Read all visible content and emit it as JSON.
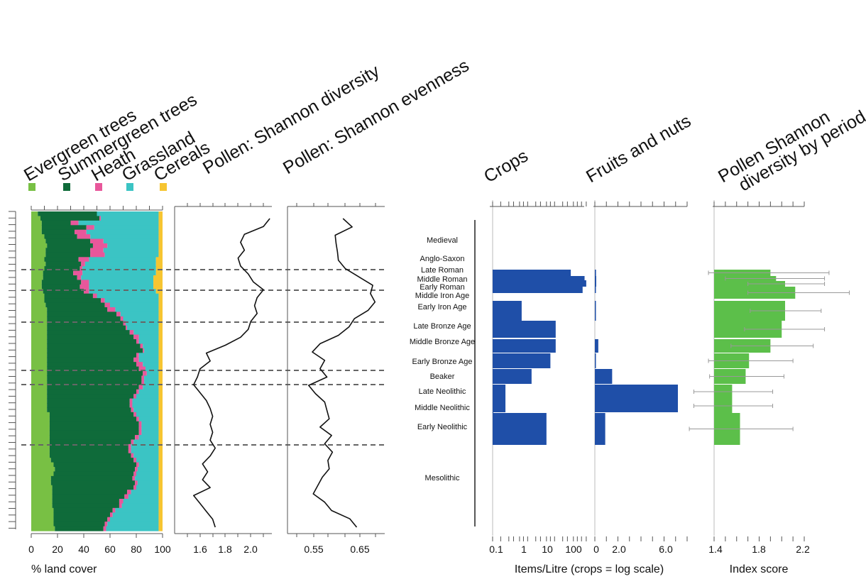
{
  "chart_data": [
    {
      "type": "area",
      "subtype": "stacked-horizontal-percent",
      "xlabel": "% land cover",
      "xlim": [
        0,
        100
      ],
      "xticks": [
        "0",
        "20",
        "40",
        "60",
        "80",
        "100"
      ],
      "legend": [
        {
          "name": "Evergreen trees",
          "color": "#78c044"
        },
        {
          "name": "Summergreen trees",
          "color": "#0f6b3a"
        },
        {
          "name": "Heath",
          "color": "#e8579b"
        },
        {
          "name": "Grassland",
          "color": "#3bc4c4"
        },
        {
          "name": "Cereals",
          "color": "#f6c531"
        }
      ],
      "note": "Samples ordered top (youngest) to bottom (oldest); values are cumulative boundaries per sample (Evergreen, +Summergreen, +Heath, +Grassland).",
      "cumulative": [
        [
          5,
          50,
          50,
          97
        ],
        [
          7,
          52,
          53,
          97
        ],
        [
          8,
          30,
          36,
          97
        ],
        [
          8,
          42,
          48,
          97
        ],
        [
          8,
          33,
          42,
          97
        ],
        [
          10,
          35,
          45,
          97
        ],
        [
          11,
          45,
          55,
          97
        ],
        [
          12,
          47,
          58,
          97
        ],
        [
          11,
          45,
          55,
          97
        ],
        [
          11,
          45,
          56,
          97
        ],
        [
          10,
          36,
          44,
          95
        ],
        [
          11,
          38,
          41,
          95
        ],
        [
          10,
          37,
          39,
          95
        ],
        [
          9,
          32,
          39,
          95
        ],
        [
          9,
          35,
          38,
          93
        ],
        [
          8,
          38,
          44,
          93
        ],
        [
          8,
          37,
          44,
          93
        ],
        [
          9,
          40,
          44,
          95
        ],
        [
          10,
          47,
          50,
          97
        ],
        [
          10,
          53,
          56,
          97
        ],
        [
          11,
          56,
          60,
          97
        ],
        [
          12,
          58,
          64,
          97
        ],
        [
          12,
          65,
          68,
          97
        ],
        [
          12,
          68,
          70,
          97
        ],
        [
          12,
          70,
          72,
          97
        ],
        [
          12,
          72,
          73,
          97
        ],
        [
          12,
          75,
          78,
          97
        ],
        [
          12,
          78,
          82,
          97
        ],
        [
          12,
          80,
          82,
          97
        ],
        [
          12,
          83,
          85,
          97
        ],
        [
          12,
          85,
          86,
          97
        ],
        [
          12,
          80,
          82,
          97
        ],
        [
          12,
          78,
          82,
          97
        ],
        [
          12,
          80,
          85,
          97
        ],
        [
          12,
          82,
          87,
          97
        ],
        [
          12,
          85,
          88,
          97
        ],
        [
          12,
          84,
          86,
          97
        ],
        [
          12,
          84,
          86,
          97
        ],
        [
          12,
          82,
          85,
          97
        ],
        [
          12,
          80,
          82,
          97
        ],
        [
          12,
          78,
          80,
          97
        ],
        [
          12,
          75,
          77,
          97
        ],
        [
          12,
          75,
          77,
          97
        ],
        [
          12,
          76,
          78,
          97
        ],
        [
          14,
          78,
          80,
          97
        ],
        [
          14,
          80,
          82,
          97
        ],
        [
          14,
          82,
          84,
          97
        ],
        [
          14,
          82,
          84,
          97
        ],
        [
          14,
          82,
          84,
          97
        ],
        [
          14,
          79,
          82,
          97
        ],
        [
          14,
          76,
          78,
          97
        ],
        [
          14,
          74,
          76,
          97
        ],
        [
          14,
          74,
          76,
          97
        ],
        [
          14,
          76,
          78,
          97
        ],
        [
          15,
          78,
          80,
          97
        ],
        [
          17,
          80,
          82,
          97
        ],
        [
          18,
          79,
          81,
          97
        ],
        [
          17,
          78,
          80,
          97
        ],
        [
          15,
          77,
          79,
          97
        ],
        [
          15,
          79,
          81,
          97
        ],
        [
          16,
          78,
          80,
          97
        ],
        [
          16,
          73,
          76,
          97
        ],
        [
          16,
          71,
          74,
          97
        ],
        [
          16,
          67,
          70,
          97
        ],
        [
          16,
          67,
          69,
          97
        ],
        [
          17,
          62,
          64,
          97
        ],
        [
          17,
          60,
          62,
          97
        ],
        [
          17,
          58,
          60,
          97
        ],
        [
          17,
          56,
          58,
          97
        ],
        [
          18,
          55,
          57,
          97
        ]
      ]
    },
    {
      "type": "line",
      "title": "Pollen: Shannon diversity",
      "xlim": [
        1.4,
        2.2
      ],
      "xticks": [
        "1.6",
        "1.8",
        "2.0"
      ],
      "values": [
        2.15,
        2.1,
        1.95,
        1.92,
        1.95,
        1.9,
        1.92,
        1.98,
        2.02,
        2.1,
        2.05,
        2.03,
        2.05,
        2.0,
        1.98,
        1.92,
        1.8,
        1.65,
        1.68,
        1.6,
        1.58,
        1.55,
        1.6,
        1.65,
        1.68,
        1.7,
        1.68,
        1.7,
        1.68,
        1.72,
        1.68,
        1.62,
        1.66,
        1.62,
        1.68,
        1.55,
        1.6,
        1.65,
        1.7,
        1.72
      ]
    },
    {
      "type": "line",
      "title": "Pollen: Shannon evenness",
      "xlim": [
        0.5,
        0.7
      ],
      "xticks": [
        "0.55",
        "0.65"
      ],
      "values": [
        0.615,
        0.635,
        0.598,
        0.6,
        0.603,
        0.605,
        0.62,
        0.65,
        0.68,
        0.675,
        0.685,
        0.67,
        0.64,
        0.628,
        0.605,
        0.565,
        0.548,
        0.575,
        0.565,
        0.58,
        0.54,
        0.555,
        0.575,
        0.58,
        0.585,
        0.565,
        0.59,
        0.575,
        0.592,
        0.582,
        0.585,
        0.57,
        0.56,
        0.55,
        0.575,
        0.59,
        0.63,
        0.645
      ]
    },
    {
      "type": "bar",
      "orientation": "horizontal",
      "title": "Crops",
      "scale": "log",
      "xticks": [
        "0.1",
        "1",
        "10",
        "100"
      ],
      "categories": [
        "Medieval",
        "Anglo-Saxon",
        "Late Roman",
        "Middle Roman",
        "Early Roman",
        "Middle Iron Age",
        "Early Iron Age",
        "Late Bronze Age",
        "Middle Bronze Age",
        "Early Bronze Age",
        "Beaker",
        "Late Neolithic",
        "Middle Neolithic",
        "Early Neolithic",
        "Mesolithic"
      ],
      "values": [
        null,
        null,
        40,
        130,
        150,
        110,
        0.6,
        11,
        11,
        7,
        1.4,
        0.15,
        0.05,
        5,
        null
      ]
    },
    {
      "type": "bar",
      "orientation": "horizontal",
      "title": "Fruits and nuts",
      "xlim": [
        0,
        8
      ],
      "xticks": [
        "0",
        "2.0",
        "6.0"
      ],
      "categories": [
        "Medieval",
        "Anglo-Saxon",
        "Late Roman",
        "Middle Roman",
        "Early Roman",
        "Middle Iron Age",
        "Early Iron Age",
        "Late Bronze Age",
        "Middle Bronze Age",
        "Early Bronze Age",
        "Beaker",
        "Late Neolithic",
        "Middle Neolithic",
        "Early Neolithic",
        "Mesolithic"
      ],
      "values": [
        null,
        null,
        0.1,
        0.12,
        0.12,
        0.06,
        0.08,
        0,
        0.3,
        0.05,
        1.5,
        7.2,
        null,
        0.9,
        null
      ]
    },
    {
      "type": "bar",
      "orientation": "horizontal",
      "title": "Pollen Shannon diversity by period",
      "xlabel": "Index score",
      "xlim": [
        1.4,
        2.2
      ],
      "xticks": [
        "1.4",
        "1.8",
        "2.2"
      ],
      "categories": [
        "Late Roman",
        "Middle Roman",
        "Early Roman",
        "Middle Iron Age",
        "Early Iron Age",
        "Late Bronze Age",
        "Middle Bronze Age",
        "Early Bronze Age",
        "Beaker",
        "Late Neolithic",
        "Middle Neolithic",
        "Early Neolithic"
      ],
      "values": [
        1.9,
        1.95,
        2.03,
        2.12,
        2.03,
        2.0,
        1.9,
        1.71,
        1.68,
        1.56,
        1.56,
        1.63
      ],
      "error_low": [
        1.35,
        1.5,
        1.7,
        1.7,
        1.72,
        1.67,
        1.55,
        1.35,
        1.36,
        1.22,
        1.22,
        1.18
      ],
      "error_high": [
        2.42,
        2.38,
        2.38,
        2.6,
        2.35,
        2.38,
        2.28,
        2.1,
        2.02,
        1.92,
        1.92,
        2.1
      ]
    }
  ],
  "labels": {
    "legend": [
      "Evergreen trees",
      "Summergreen trees",
      "Heath",
      "Grassland",
      "Cereals"
    ],
    "panel_diversity": "Pollen: Shannon diversity",
    "panel_evenness": "Pollen: Shannon evenness",
    "panel_crops": "Crops",
    "panel_fruits": "Fruits and nuts",
    "panel_index_1": "Pollen Shannon",
    "panel_index_2": "diversity by period",
    "xlabel_landcover": "% land cover",
    "xlabel_items": "Items/Litre (crops = log scale)",
    "xlabel_index": "Index score"
  },
  "ticks": {
    "landcover": [
      "0",
      "20",
      "40",
      "60",
      "80",
      "100"
    ],
    "diversity": [
      "1.6",
      "1.8",
      "2.0"
    ],
    "evenness": [
      "0.55",
      "0.65"
    ],
    "crops": [
      "0.1",
      "1",
      "10",
      "100"
    ],
    "fruits": [
      "0",
      "2.0",
      "6.0"
    ],
    "index": [
      "1.4",
      "1.8",
      "2.2"
    ]
  },
  "periods": [
    "Medieval",
    "Anglo-Saxon",
    "Late Roman",
    "Middle Roman",
    "Early Roman",
    "Middle Iron Age",
    "Early Iron Age",
    "Late Bronze Age",
    "Middle Bronze Age",
    "Early Bronze Age",
    "Beaker",
    "Late Neolithic",
    "Middle Neolithic",
    "Early Neolithic",
    "Mesolithic"
  ],
  "colors": {
    "evergreen": "#78c044",
    "summergreen": "#0f6b3a",
    "heath": "#e8579b",
    "grassland": "#3bc4c4",
    "cereals": "#f6c531",
    "bar_blue": "#1f4fa8",
    "bar_green": "#5cbf4a"
  }
}
